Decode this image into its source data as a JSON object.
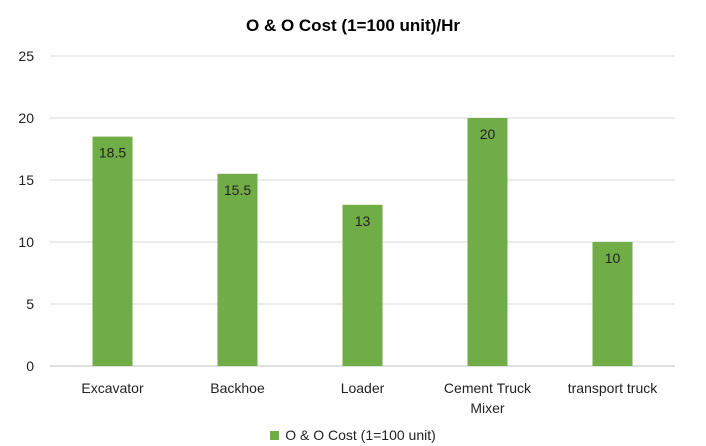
{
  "chart_data": {
    "type": "bar",
    "title": "O & O Cost (1=100 unit)/Hr",
    "categories": [
      "Excavator",
      "Backhoe",
      "Loader",
      "Cement Truck Mixer",
      "transport truck"
    ],
    "category_lines": [
      [
        "Excavator"
      ],
      [
        "Backhoe"
      ],
      [
        "Loader"
      ],
      [
        "Cement Truck",
        "Mixer"
      ],
      [
        "transport truck"
      ]
    ],
    "series": [
      {
        "name": "O & O Cost (1=100 unit)",
        "values": [
          18.5,
          15.5,
          13,
          20,
          10
        ],
        "color": "#70ad47"
      }
    ],
    "data_labels": [
      "18.5",
      "15.5",
      "13",
      "20",
      "10"
    ],
    "ylim": [
      0,
      25
    ],
    "yticks": [
      0,
      5,
      10,
      15,
      20,
      25
    ],
    "xlabel": "",
    "ylabel": "",
    "grid": true,
    "legend_position": "bottom",
    "gridline_color": "#d9d9d9",
    "axis_color": "#bfbfbf",
    "tick_label_color": "#222222"
  }
}
